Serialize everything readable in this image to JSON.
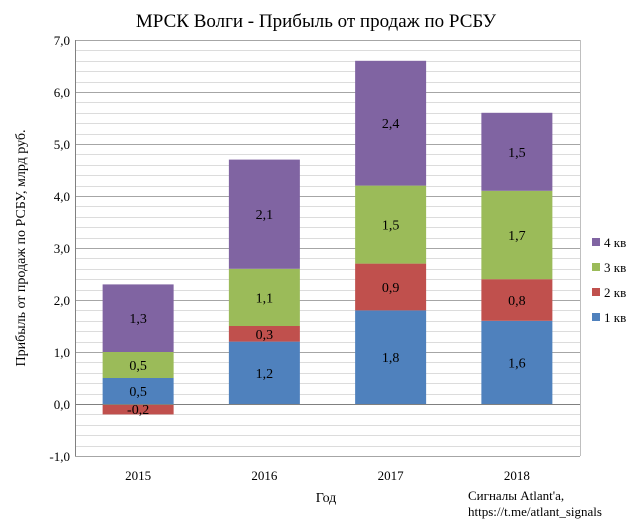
{
  "chart_data": {
    "type": "bar",
    "stacked": true,
    "title": "МРСК Волги - Прибыль от продаж по РСБУ",
    "xlabel": "Год",
    "ylabel": "Прибыль от продаж по РСБУ, млрд  руб.",
    "categories": [
      "2015",
      "2016",
      "2017",
      "2018"
    ],
    "ylim": [
      -1.0,
      7.0
    ],
    "yticks": [
      "-1,0",
      "0,0",
      "1,0",
      "2,0",
      "3,0",
      "4,0",
      "5,0",
      "6,0",
      "7,0"
    ],
    "grid": true,
    "legend_position": "right",
    "series": [
      {
        "name": "1 кв",
        "color": "#4f81bd",
        "values": [
          0.5,
          1.2,
          1.8,
          1.6
        ],
        "labels": [
          "0,5",
          "1,2",
          "1,8",
          "1,6"
        ]
      },
      {
        "name": "2 кв",
        "color": "#c0504d",
        "values": [
          -0.2,
          0.3,
          0.9,
          0.8
        ],
        "labels": [
          "-0,2",
          "0,3",
          "0,9",
          "0,8"
        ]
      },
      {
        "name": "3 кв",
        "color": "#9bbb59",
        "values": [
          0.5,
          1.1,
          1.5,
          1.7
        ],
        "labels": [
          "0,5",
          "1,1",
          "1,5",
          "1,7"
        ]
      },
      {
        "name": "4 кв",
        "color": "#8064a2",
        "values": [
          1.3,
          2.1,
          2.4,
          1.5
        ],
        "labels": [
          "1,3",
          "2,1",
          "2,4",
          "1,5"
        ]
      }
    ]
  },
  "credit": {
    "line1": "Сигналы Atlant'a,",
    "line2": "https://t.me/atlant_signals"
  }
}
